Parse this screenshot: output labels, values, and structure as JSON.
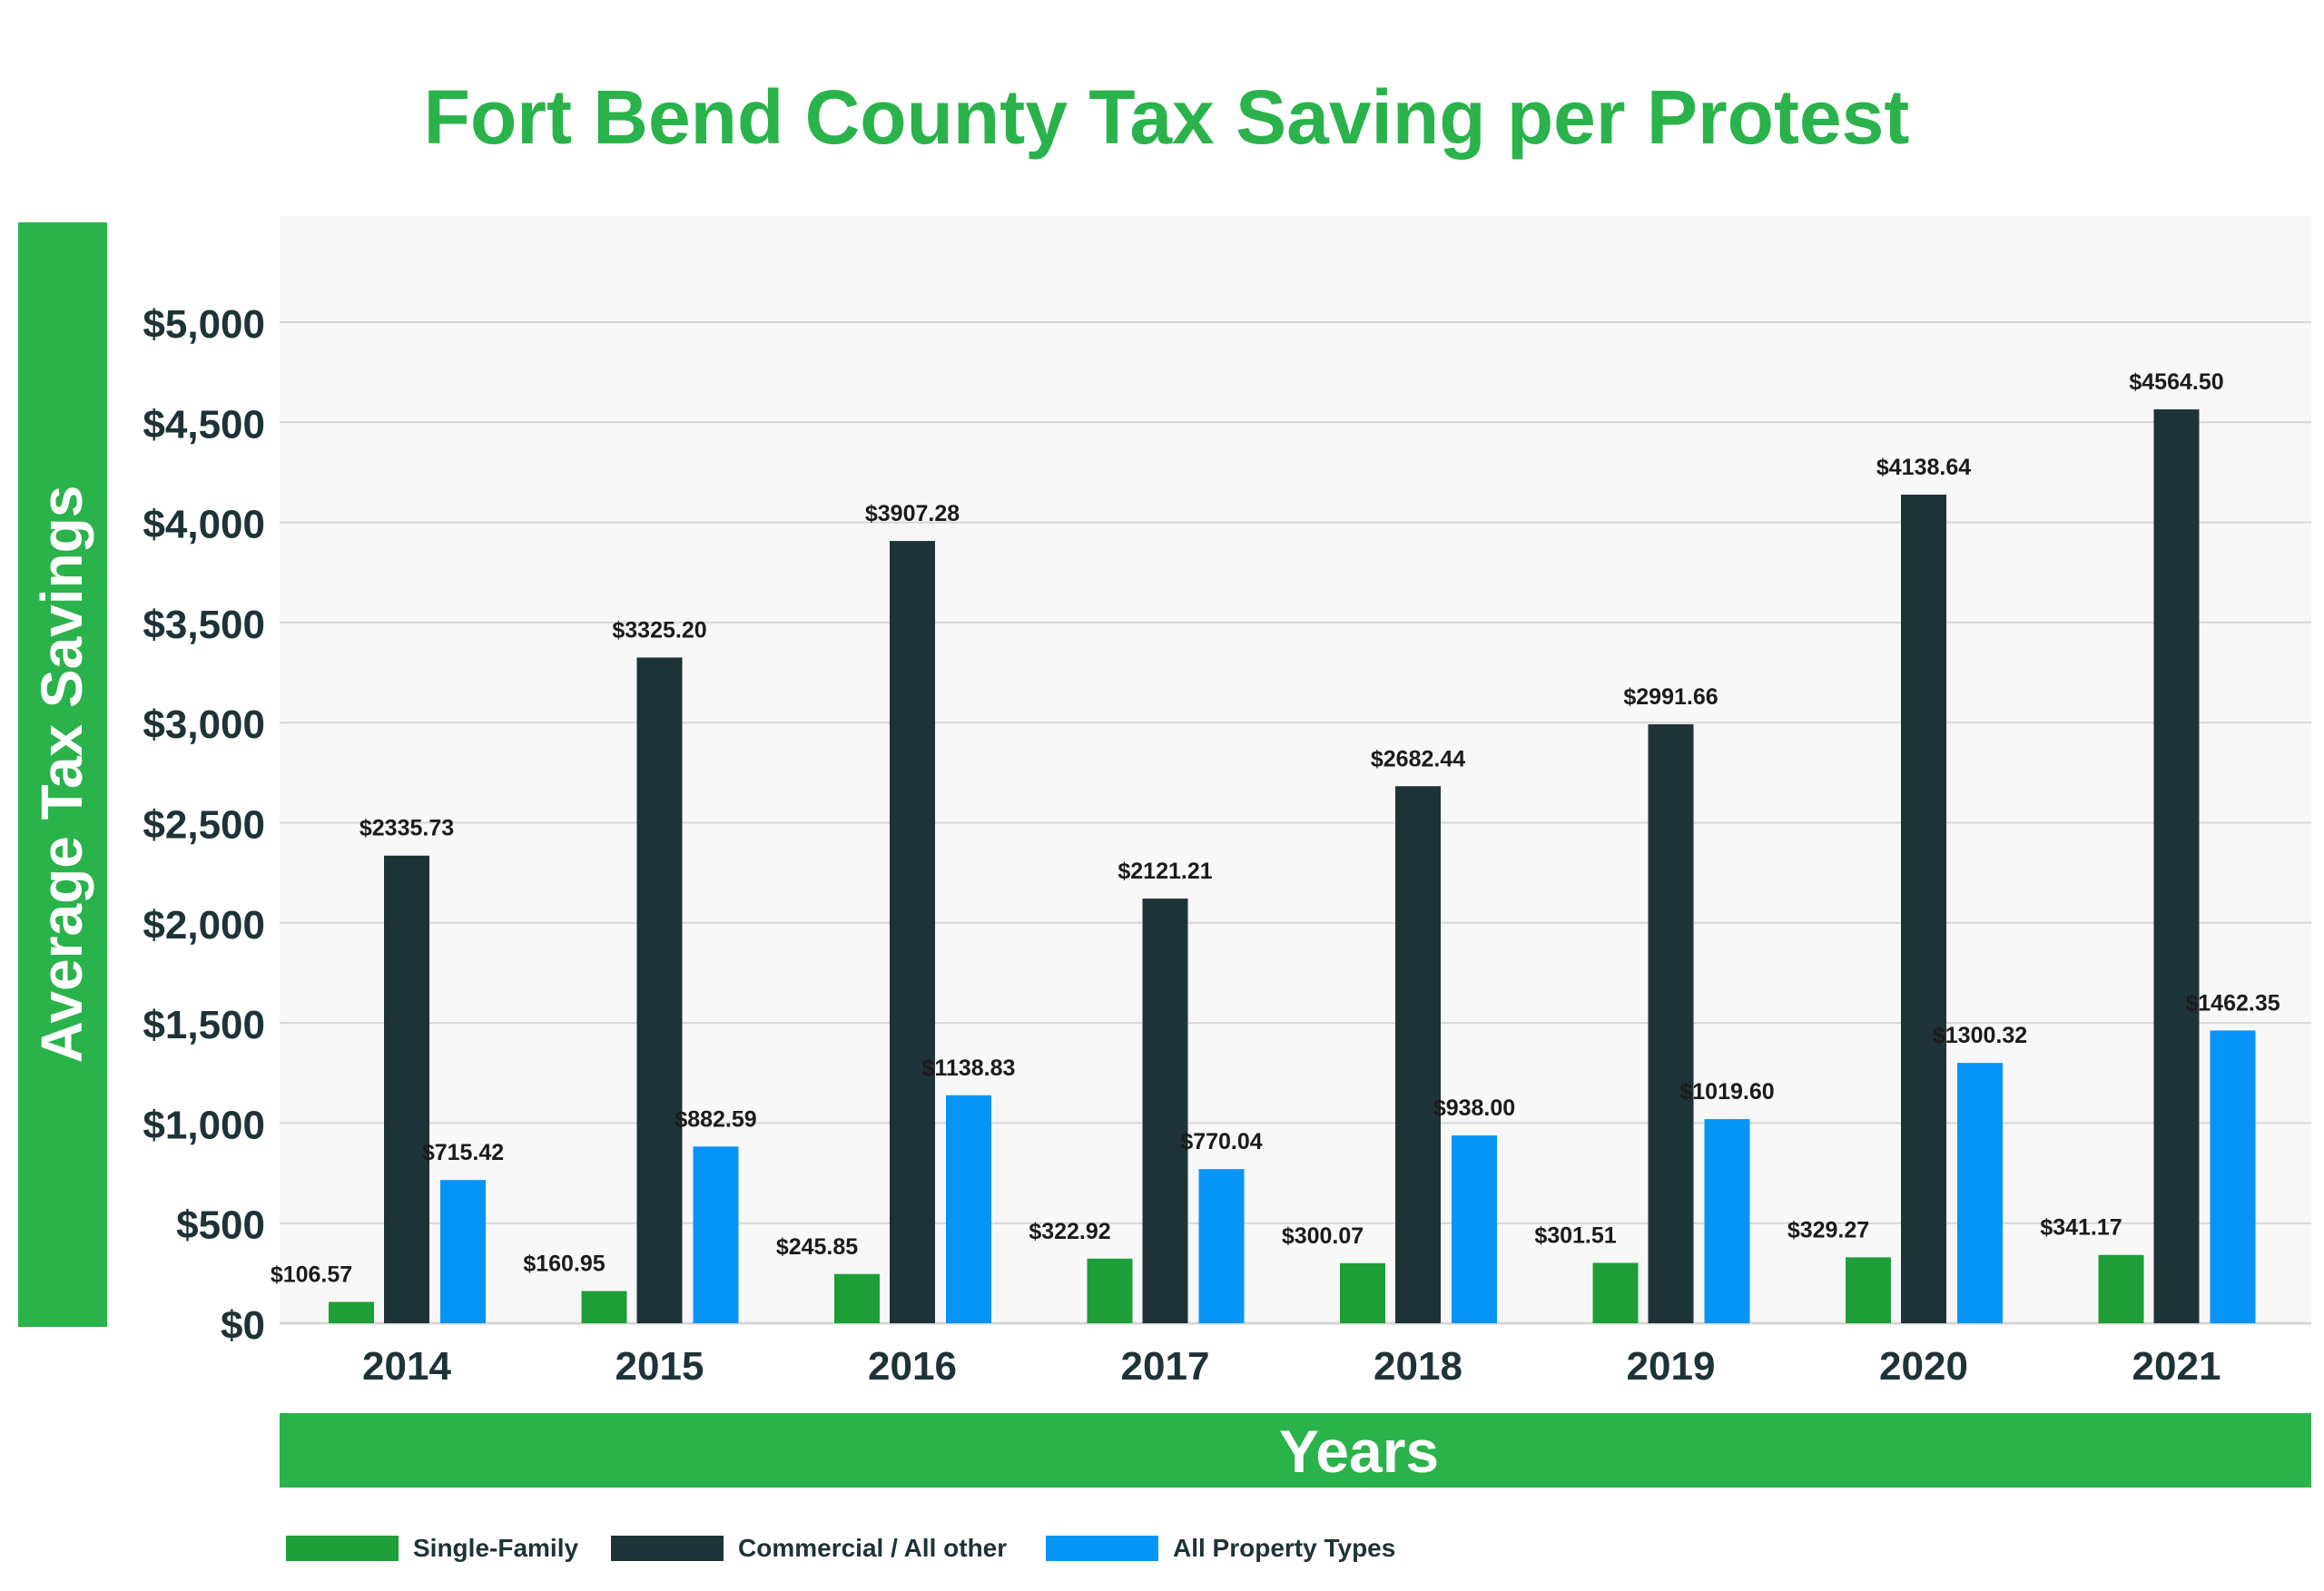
{
  "colors": {
    "title": "#2ab24b",
    "single_family": "#1e9e36",
    "commercial": "#1e3337",
    "all_property": "#0794f7",
    "banner": "#2ab24b",
    "plot_bg": "#f8f8f8",
    "grid": "#d6d6d6",
    "axis_text": "#1e3337",
    "banner_text": "#ffffff"
  },
  "chart_data": {
    "type": "bar",
    "title": "Fort Bend County Tax Saving per Protest",
    "xlabel": "Years",
    "ylabel": "Average Tax Savings",
    "ylim": [
      0,
      5500
    ],
    "y_ticks": [
      0,
      500,
      1000,
      1500,
      2000,
      2500,
      3000,
      3500,
      4000,
      4500,
      5000
    ],
    "y_tick_labels": [
      "$0",
      "$500",
      "$1,000",
      "$1,500",
      "$2,000",
      "$2,500",
      "$3,000",
      "$3,500",
      "$4,000",
      "$4,500",
      "$5,000"
    ],
    "grid": true,
    "legend_position": "bottom-left",
    "categories": [
      "2014",
      "2015",
      "2016",
      "2017",
      "2018",
      "2019",
      "2020",
      "2021"
    ],
    "series": [
      {
        "name": "Single-Family",
        "color_key": "single_family",
        "values": [
          106.57,
          160.95,
          245.85,
          322.92,
          300.07,
          301.51,
          329.27,
          341.17
        ],
        "labels": [
          "$106.57",
          "$160.95",
          "$245.85",
          "$322.92",
          "$300.07",
          "$301.51",
          "$329.27",
          "$341.17"
        ]
      },
      {
        "name": "Commercial / All other",
        "color_key": "commercial",
        "values": [
          2335.73,
          3325.2,
          3907.28,
          2121.21,
          2682.44,
          2991.66,
          4138.64,
          4564.5
        ],
        "labels": [
          "$2335.73",
          "$3325.20",
          "$3907.28",
          "$2121.21",
          "$2682.44",
          "$2991.66",
          "$4138.64",
          "$4564.50"
        ]
      },
      {
        "name": "All Property Types",
        "color_key": "all_property",
        "values": [
          715.42,
          882.59,
          1138.83,
          770.04,
          938.0,
          1019.6,
          1300.32,
          1462.35
        ],
        "labels": [
          "$715.42",
          "$882.59",
          "$1138.83",
          "$770.04",
          "$938.00",
          "$1019.60",
          "$1300.32",
          "$1462.35"
        ]
      }
    ]
  }
}
